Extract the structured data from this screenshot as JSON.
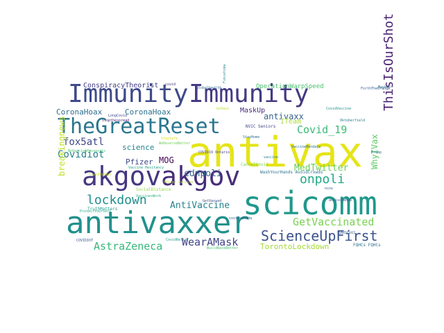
{
  "words": [
    {
      "text": "antivax",
      "color": "#e5e419"
    },
    {
      "text": "Immunity",
      "color": "#3e4a89"
    },
    {
      "text": "Immunity",
      "color": "#443a83"
    },
    {
      "text": "akgov",
      "color": "#453781"
    },
    {
      "text": "akgov",
      "color": "#472d7b"
    },
    {
      "text": "scicomm",
      "color": "#1f988b"
    },
    {
      "text": "antivaxxer",
      "color": "#21918c"
    },
    {
      "text": "TheGreatReset",
      "color": "#2a768e"
    },
    {
      "text": "ScienceUpFirst",
      "color": "#3b528b"
    },
    {
      "text": "ThisIsOurShot",
      "color": "#481f70"
    },
    {
      "text": "lockdown",
      "color": "#218f8d"
    },
    {
      "text": "onpoli",
      "color": "#22a785"
    },
    {
      "text": "GetVaccinated",
      "color": "#7ad151"
    },
    {
      "text": "AstraZeneca",
      "color": "#35b779"
    },
    {
      "text": "WearAMask",
      "color": "#414487"
    },
    {
      "text": "Covid_19",
      "color": "#3bbb75"
    },
    {
      "text": "antivaxx",
      "color": "#355f8d"
    },
    {
      "text": "Covidiot",
      "color": "#277f8e"
    },
    {
      "text": "CoronaHoax",
      "color": "#2e6e8e"
    },
    {
      "text": "CoronaHoax",
      "color": "#2c728e"
    },
    {
      "text": "fox5atl",
      "color": "#3f4788"
    },
    {
      "text": "MOG",
      "color": "#440154"
    },
    {
      "text": "cdnpoli",
      "color": "#31688e"
    },
    {
      "text": "MedTwitter",
      "color": "#6ccd5a"
    },
    {
      "text": "AntiVaccine",
      "color": "#26828e"
    },
    {
      "text": "breakingnews",
      "color": "#bddf26"
    },
    {
      "text": "WhyIVax",
      "color": "#5ec962"
    },
    {
      "text": "TorontoLockdown",
      "color": "#a5db36"
    },
    {
      "text": "science",
      "color": "#25848e"
    },
    {
      "text": "Pfizer",
      "color": "#3e4989"
    },
    {
      "text": "ITeam",
      "color": "#a8db34"
    },
    {
      "text": "MaskUp",
      "color": "#472a7a"
    },
    {
      "text": "ConspiracyTheorist",
      "color": "#433e85"
    },
    {
      "text": "OperationWarpSpeed",
      "color": "#4ac16d"
    },
    {
      "text": "NVIC Seniors",
      "color": "#404688"
    },
    {
      "text": "CancelCovid",
      "color": "#7fd34e"
    },
    {
      "text": "WashYourHands AvoidCrowds",
      "color": "#2d708e"
    },
    {
      "text": "SocialDistance",
      "color": "#90d743"
    },
    {
      "text": "TruthMatters",
      "color": "#1f9e89"
    },
    {
      "text": "FQHCs FQHCs",
      "color": "#2e6f8e"
    },
    {
      "text": "globalhealth",
      "color": "#31688e"
    },
    {
      "text": "Pfizer vaccine",
      "color": "#b5de2b"
    },
    {
      "text": "COVID19 Ontario",
      "color": "#433d84"
    },
    {
      "text": "StaySafe",
      "color": "#d8e219"
    },
    {
      "text": "Trump",
      "color": "#2a788e"
    },
    {
      "text": "Fukushima",
      "color": "#24868e"
    },
    {
      "text": "Oktoberfield",
      "color": "#29798e"
    },
    {
      "text": "stopthespread",
      "color": "#482475"
    },
    {
      "text": "WeDeserveBetter",
      "color": "#6ece58"
    },
    {
      "text": "Vaccine Hesitancy",
      "color": "#1fa188"
    },
    {
      "text": "VaccinesWork",
      "color": "#2ab07f"
    },
    {
      "text": "NoVaccinePassports",
      "color": "#44bf70"
    },
    {
      "text": "ProtectYourself",
      "color": "#22a884"
    },
    {
      "text": "COVIDIOT",
      "color": "#3a548c"
    },
    {
      "text": "BuildBackBetter",
      "color": "#4ac16d"
    },
    {
      "text": "CovidRelief",
      "color": "#1f9a8a"
    },
    {
      "text": "ForthTheOrange",
      "color": "#365c8d"
    },
    {
      "text": "MaskOn",
      "color": "#2f6b8e"
    },
    {
      "text": "GoVaxx",
      "color": "#b2dd2d"
    },
    {
      "text": "antiscience",
      "color": "#3b528b"
    },
    {
      "text": "SARSCoV2",
      "color": "#34608d"
    },
    {
      "text": "CovidVaccine",
      "color": "#20928c"
    },
    {
      "text": "VaccineMandate",
      "color": "#2e6f8e"
    },
    {
      "text": "LongCovid",
      "color": "#3f4788"
    },
    {
      "text": "CovidIsReal",
      "color": "#cae11f"
    },
    {
      "text": "GetVaxxed",
      "color": "#3e4a89"
    },
    {
      "text": "covidcanada",
      "color": "#38588c"
    },
    {
      "text": "StayHome",
      "color": "#2c718e"
    },
    {
      "text": "covid",
      "color": "#46327e"
    },
    {
      "text": "vaccine",
      "color": "#27808e"
    },
    {
      "text": "ncov",
      "color": "#34618d"
    }
  ]
}
